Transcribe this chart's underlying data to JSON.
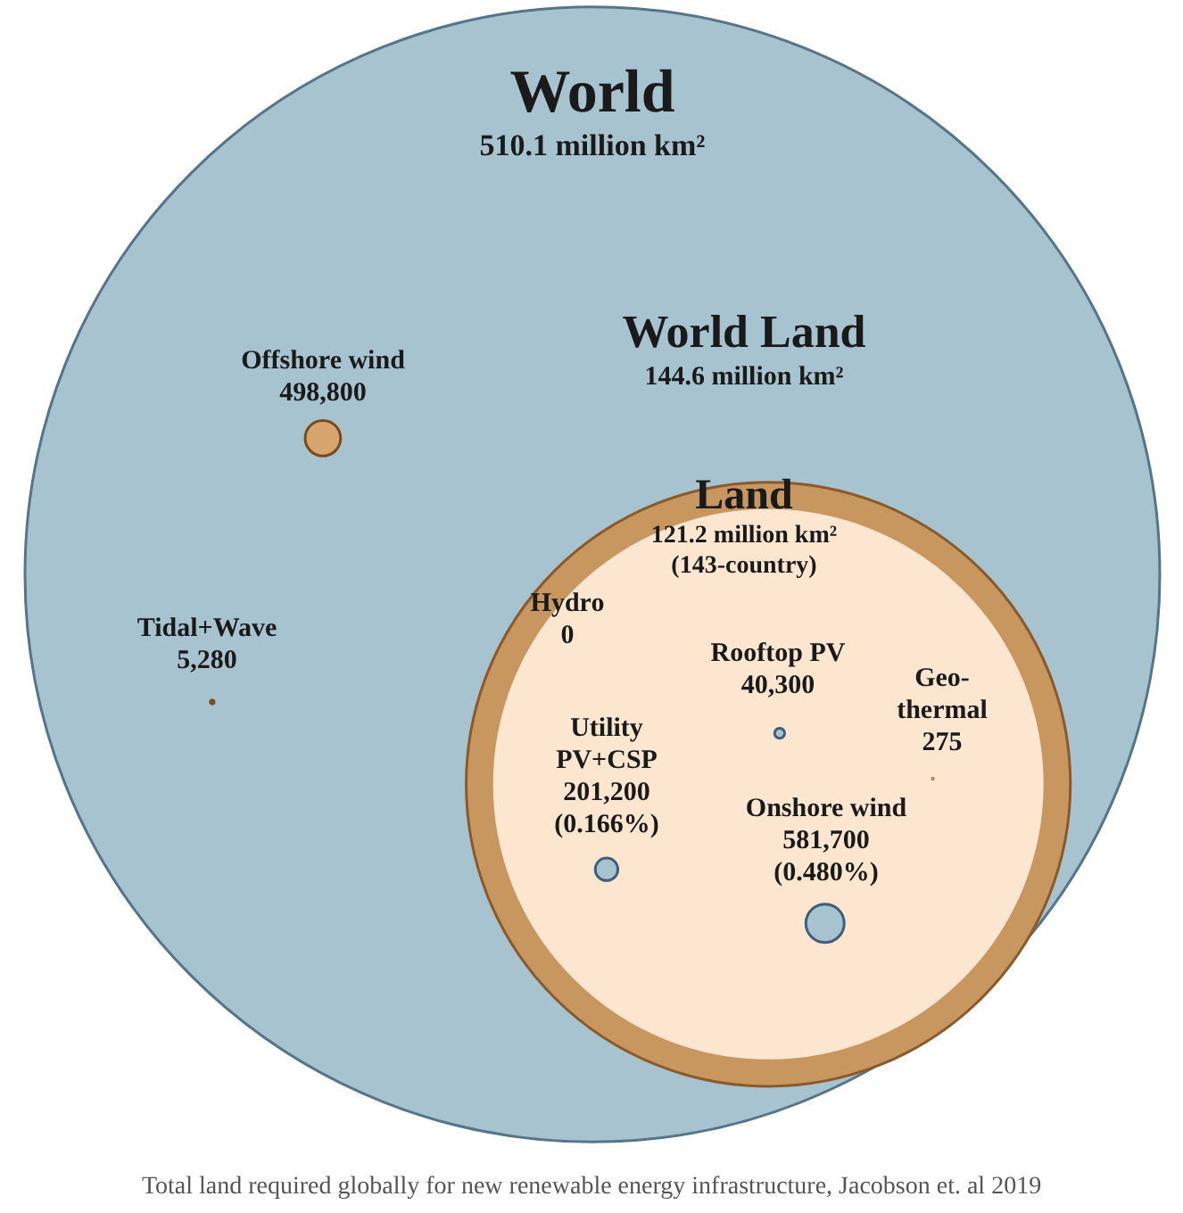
{
  "chart_data": {
    "type": "other",
    "categories": [
      "World",
      "World Land",
      "Land",
      "Offshore wind",
      "Tidal+Wave",
      "Hydro",
      "Rooftop PV",
      "Geo-\nthermal",
      "Utility\nPV+CSP",
      "Onshore wind"
    ],
    "values": [
      510100000,
      144600000,
      121200000,
      498800,
      5280,
      0,
      40300,
      275,
      201200,
      581700
    ],
    "value_labels": [
      "510.1 million km²",
      "144.6 million km²",
      "121.2 million km²\n(143-country)",
      "498,800",
      "5,280",
      "0",
      "40,300",
      "275",
      "201,200\n(0.166%)",
      "581,700\n(0.480%)"
    ],
    "colors": [
      "#a8c3d0",
      "#c8965f",
      "#fce6d0",
      "#d8a56e",
      "#c46a2a",
      null,
      "#a8c3d0",
      "#c8965f",
      "#a8c3d0",
      "#a8c3d0"
    ],
    "annotations": [
      "Total land required globally for new renewable energy infrastructure, Jacobson et. al 2019"
    ]
  }
}
